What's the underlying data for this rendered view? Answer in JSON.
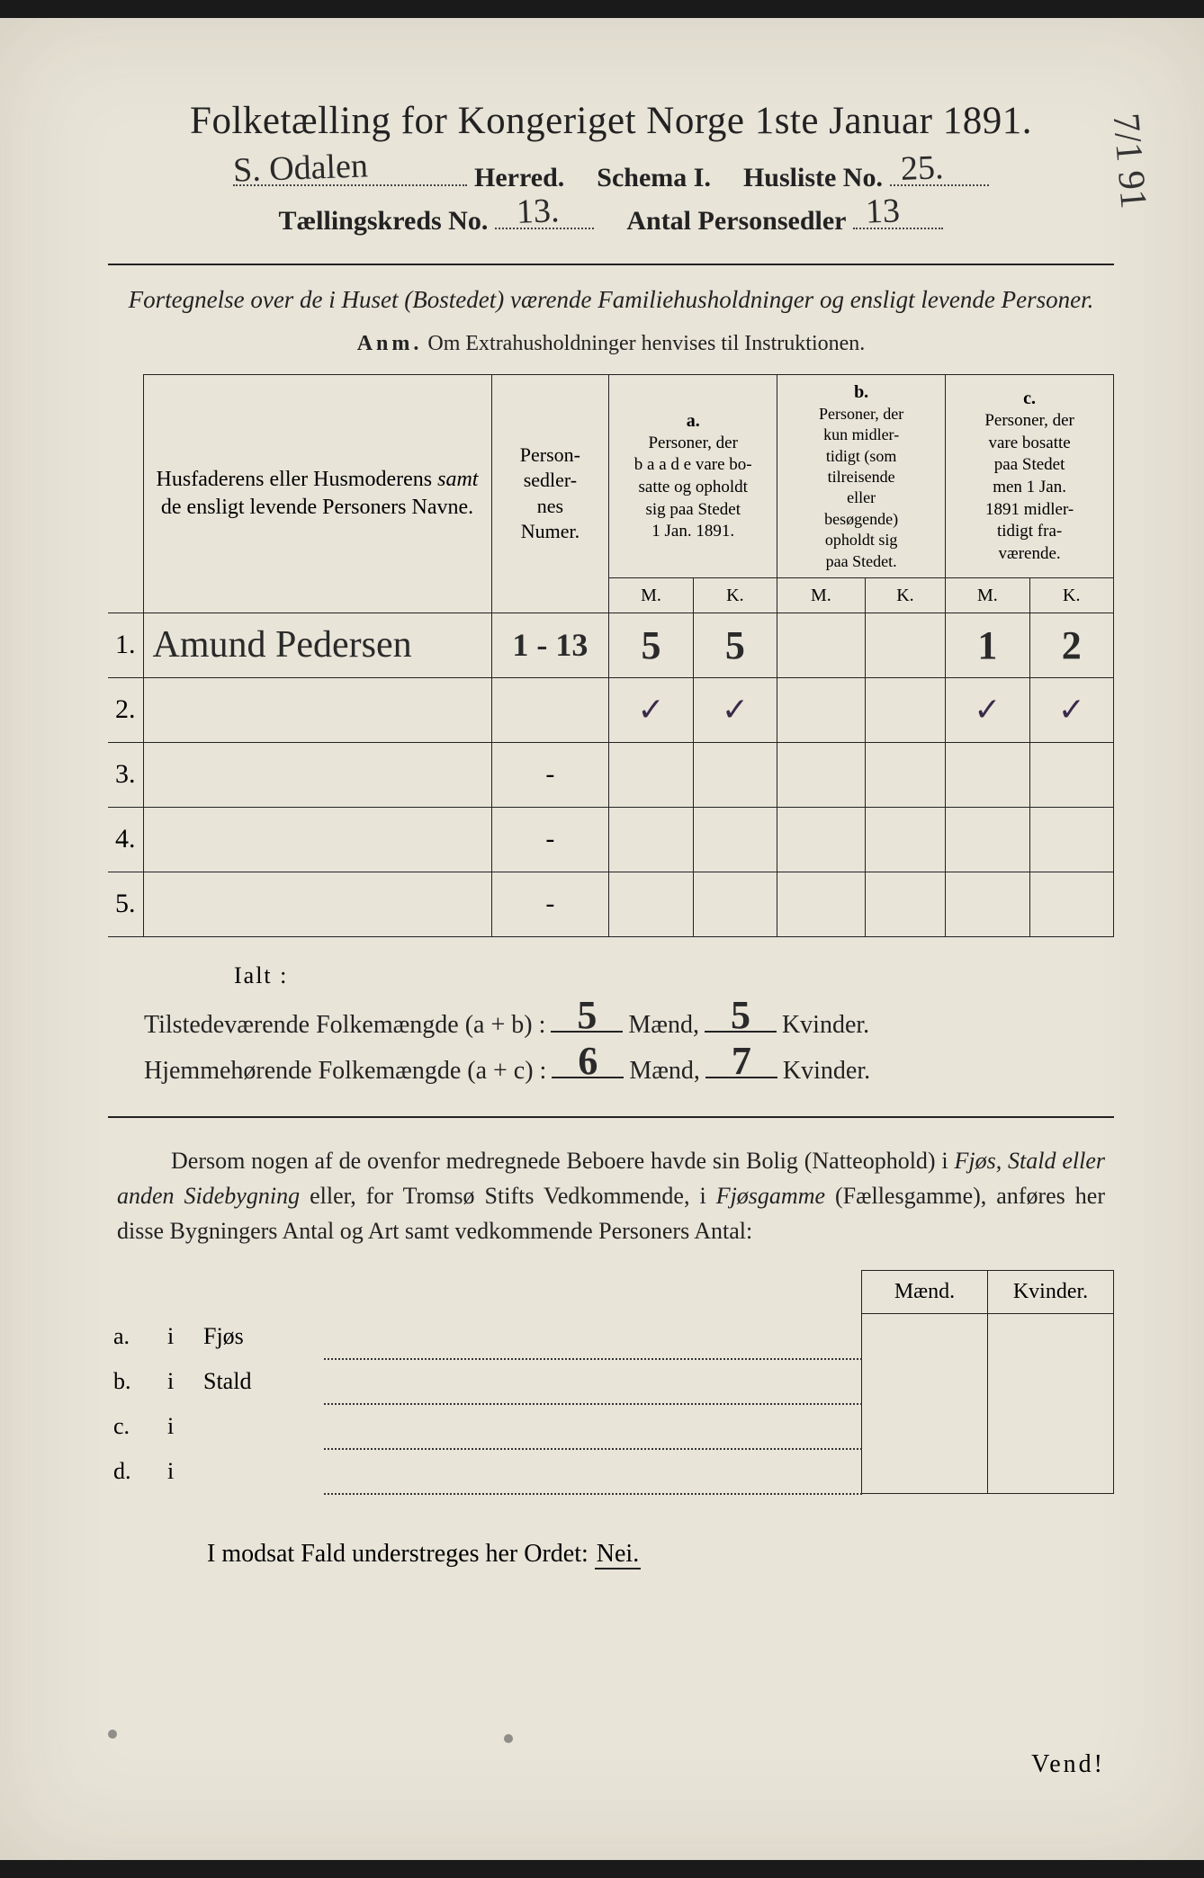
{
  "title": "Folketælling for Kongeriget Norge 1ste Januar 1891.",
  "header": {
    "herred_value": "S. Odalen",
    "herred_label": "Herred.",
    "schema_label": "Schema I.",
    "husliste_label": "Husliste No.",
    "husliste_value": "25.",
    "kreds_label": "Tællingskreds No.",
    "kreds_value": "13.",
    "personsedler_label": "Antal Personsedler",
    "personsedler_value": "13",
    "margin_note": "7/1 91"
  },
  "fortegnelse": "Fortegnelse over de i Huset (Bostedet) værende Familiehusholdninger og ensligt levende Personer.",
  "anm_label": "Anm.",
  "anm_text": "Om Extrahusholdninger henvises til Instruktionen.",
  "table": {
    "col_name": "Husfaderens eller Husmoderens samt de ensligt levende Personers Navne.",
    "col_num": "Person-sedler-nes Numer.",
    "col_a_label": "a.",
    "col_a": "Personer, der baade vare bosatte og opholdt sig paa Stedet 1 Jan. 1891.",
    "col_b_label": "b.",
    "col_b": "Personer, der kun midlertidigt (som tilreisende eller besøgende) opholdt sig paa Stedet.",
    "col_c_label": "c.",
    "col_c": "Personer, der vare bosatte paa Stedet men 1 Jan. 1891 midlertidigt fraværende.",
    "m": "M.",
    "k": "K.",
    "rows": [
      {
        "n": "1.",
        "name": "Amund Pedersen",
        "num": "1 - 13",
        "am": "5",
        "ak": "5",
        "bm": "",
        "bk": "",
        "cm": "1",
        "ck": "2"
      },
      {
        "n": "2.",
        "name": "",
        "num": "",
        "am": "✓",
        "ak": "✓",
        "bm": "",
        "bk": "",
        "cm": "✓",
        "ck": "✓"
      },
      {
        "n": "3.",
        "name": "",
        "num": "",
        "am": "",
        "ak": "",
        "bm": "",
        "bk": "",
        "cm": "",
        "ck": ""
      },
      {
        "n": "4.",
        "name": "",
        "num": "",
        "am": "",
        "ak": "",
        "bm": "",
        "bk": "",
        "cm": "",
        "ck": ""
      },
      {
        "n": "5.",
        "name": "",
        "num": "",
        "am": "",
        "ak": "",
        "bm": "",
        "bk": "",
        "cm": "",
        "ck": ""
      }
    ]
  },
  "ialt": "Ialt :",
  "totals": {
    "tilstede_label": "Tilstedeværende Folkemængde (a + b) :",
    "hjemme_label": "Hjemmehørende Folkemængde (a + c) :",
    "maend": "Mænd,",
    "kvinder": "Kvinder.",
    "t_m": "5",
    "t_k": "5",
    "h_m": "6",
    "h_k": "7"
  },
  "dersom": {
    "p1": "Dersom nogen af de ovenfor medregnede Beboere havde sin Bolig (Natteophold) i ",
    "p2": "Fjøs, Stald eller anden Sidebygning",
    "p3": " eller, for Tromsø Stifts Vedkommende, i ",
    "p4": "Fjøsgamme",
    "p5": " (Fællesgamme), anføres her disse Bygningers Antal og Art samt vedkommende Personers Antal:"
  },
  "side": {
    "maend": "Mænd.",
    "kvinder": "Kvinder.",
    "rows": [
      {
        "lab": "a.",
        "i": "i",
        "type": "Fjøs"
      },
      {
        "lab": "b.",
        "i": "i",
        "type": "Stald"
      },
      {
        "lab": "c.",
        "i": "i",
        "type": ""
      },
      {
        "lab": "d.",
        "i": "i",
        "type": ""
      }
    ]
  },
  "modsat": "I modsat Fald understreges her Ordet: ",
  "nei": "Nei.",
  "vend": "Vend!",
  "colors": {
    "paper": "#e8e4d8",
    "ink": "#222222",
    "script": "#2a2a2a"
  }
}
